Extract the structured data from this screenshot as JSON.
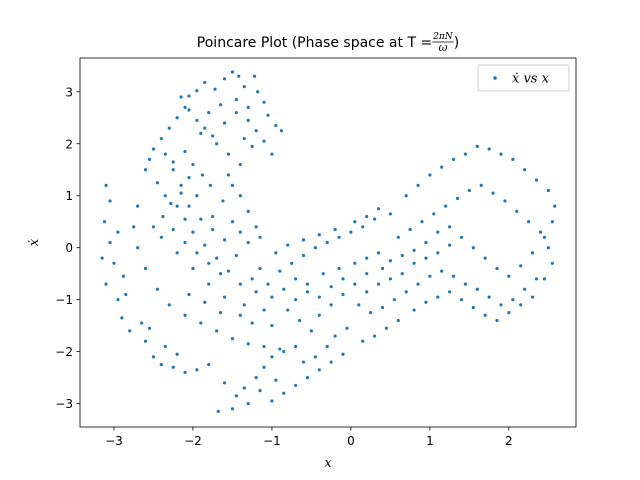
{
  "chart_data": {
    "type": "scatter",
    "title": {
      "prefix": "Poincare Plot (Phase space at T = ",
      "frac_numerator": "2πN",
      "frac_denominator": "ω",
      "suffix": ")"
    },
    "xlabel": "x",
    "ylabel": "ẋ",
    "xlim": [
      -3.43,
      2.85
    ],
    "ylim": [
      -3.45,
      3.65
    ],
    "xticks": [
      -3,
      -2,
      -1,
      0,
      1,
      2
    ],
    "yticks": [
      -3,
      -2,
      -1,
      0,
      1,
      2,
      3
    ],
    "xtick_labels": [
      "−3",
      "−2",
      "−1",
      "0",
      "1",
      "2"
    ],
    "ytick_labels": [
      "−3",
      "−2",
      "−1",
      "0",
      "1",
      "2",
      "3"
    ],
    "legend": {
      "label": "ẋ vs x",
      "location": "upper right"
    },
    "colors": {
      "series": "#1f77b4"
    },
    "series": [
      {
        "name": "ẋ vs x",
        "points": [
          [
            -1.5,
            3.38
          ],
          [
            -1.42,
            3.3
          ],
          [
            -1.35,
            3.1
          ],
          [
            -1.6,
            3.25
          ],
          [
            -1.72,
            3.05
          ],
          [
            -1.85,
            3.18
          ],
          [
            -1.95,
            3.02
          ],
          [
            -2.05,
            2.92
          ],
          [
            -1.22,
            3.3
          ],
          [
            -1.18,
            3.0
          ],
          [
            -1.1,
            2.8
          ],
          [
            -1.05,
            2.55
          ],
          [
            -0.95,
            2.35
          ],
          [
            -0.88,
            2.25
          ],
          [
            -1.3,
            2.7
          ],
          [
            -1.45,
            2.85
          ],
          [
            -1.65,
            2.75
          ],
          [
            -1.8,
            2.6
          ],
          [
            -2.1,
            2.7
          ],
          [
            -2.2,
            2.5
          ],
          [
            -2.3,
            2.3
          ],
          [
            -2.4,
            2.1
          ],
          [
            -2.5,
            1.9
          ],
          [
            -2.55,
            1.7
          ],
          [
            -2.6,
            1.5
          ],
          [
            -2.45,
            1.25
          ],
          [
            -2.35,
            1.0
          ],
          [
            -2.2,
            0.8
          ],
          [
            -2.1,
            0.55
          ],
          [
            -2.0,
            0.3
          ],
          [
            -1.85,
            0.05
          ],
          [
            -1.7,
            -0.2
          ],
          [
            -1.55,
            -0.45
          ],
          [
            -1.4,
            -0.7
          ],
          [
            -1.2,
            -0.85
          ],
          [
            -1.55,
            1.4
          ],
          [
            -1.5,
            1.2
          ],
          [
            -1.4,
            1.0
          ],
          [
            -1.3,
            0.7
          ],
          [
            -1.2,
            0.4
          ],
          [
            -1.15,
            0.2
          ],
          [
            -1.62,
            0.9
          ],
          [
            -1.75,
            0.6
          ],
          [
            -1.9,
            2.2
          ],
          [
            -1.7,
            2.0
          ],
          [
            -1.55,
            1.8
          ],
          [
            -1.4,
            1.6
          ],
          [
            -2.25,
            1.5
          ],
          [
            -2.15,
            1.2
          ],
          [
            -1.95,
            1.0
          ],
          [
            -2.7,
            0.8
          ],
          [
            -2.75,
            0.4
          ],
          [
            -2.7,
            0.0
          ],
          [
            -2.6,
            -0.4
          ],
          [
            -2.45,
            -0.8
          ],
          [
            -2.3,
            -1.1
          ],
          [
            -2.1,
            -1.3
          ],
          [
            -1.9,
            -1.45
          ],
          [
            -1.7,
            -1.6
          ],
          [
            -1.5,
            -1.75
          ],
          [
            -1.3,
            -1.85
          ],
          [
            -1.1,
            -1.9
          ],
          [
            -0.9,
            -1.95
          ],
          [
            -0.7,
            -1.9
          ],
          [
            -2.4,
            0.2
          ],
          [
            -2.2,
            -0.1
          ],
          [
            -2.0,
            -0.4
          ],
          [
            -1.8,
            -0.7
          ],
          [
            -1.6,
            -0.95
          ],
          [
            -1.35,
            -1.1
          ],
          [
            -1.1,
            -1.2
          ],
          [
            -2.05,
            -0.9
          ],
          [
            -1.85,
            -1.05
          ],
          [
            -1.65,
            -1.25
          ],
          [
            -3.1,
            1.2
          ],
          [
            -3.05,
            0.9
          ],
          [
            -3.12,
            0.5
          ],
          [
            -3.05,
            0.1
          ],
          [
            -3.0,
            -0.3
          ],
          [
            -3.1,
            -0.7
          ],
          [
            -2.95,
            -1.0
          ],
          [
            -2.9,
            -1.35
          ],
          [
            -2.8,
            -1.6
          ],
          [
            -2.95,
            0.3
          ],
          [
            -2.85,
            -0.9
          ],
          [
            -3.15,
            -0.2
          ],
          [
            -2.88,
            -0.55
          ],
          [
            -2.65,
            -1.45
          ],
          [
            -2.6,
            -1.8
          ],
          [
            -2.5,
            -2.1
          ],
          [
            -2.4,
            -2.25
          ],
          [
            -2.25,
            -2.3
          ],
          [
            -2.1,
            -2.4
          ],
          [
            -1.95,
            -2.35
          ],
          [
            -1.8,
            -2.25
          ],
          [
            -2.55,
            -1.55
          ],
          [
            -2.35,
            -1.9
          ],
          [
            -2.2,
            -2.05
          ],
          [
            -1.6,
            -2.6
          ],
          [
            -1.45,
            -2.85
          ],
          [
            -1.3,
            -3.0
          ],
          [
            -1.5,
            -3.1
          ],
          [
            -1.68,
            -3.15
          ],
          [
            -1.35,
            -2.7
          ],
          [
            -1.2,
            -2.5
          ],
          [
            -1.1,
            -2.3
          ],
          [
            -1.0,
            -2.1
          ],
          [
            -0.85,
            -2.0
          ],
          [
            -0.6,
            -2.2
          ],
          [
            -0.45,
            -2.1
          ],
          [
            -0.3,
            -1.9
          ],
          [
            -0.2,
            -1.7
          ],
          [
            -0.05,
            -1.55
          ],
          [
            -0.5,
            -1.6
          ],
          [
            -0.65,
            -1.4
          ],
          [
            -0.8,
            -1.2
          ],
          [
            -1.0,
            -1.5
          ],
          [
            -1.25,
            -1.45
          ],
          [
            -1.4,
            -1.3
          ],
          [
            -0.4,
            -1.3
          ],
          [
            -0.25,
            -1.1
          ],
          [
            -0.1,
            -0.9
          ],
          [
            -1.05,
            -0.7
          ],
          [
            -0.9,
            -0.45
          ],
          [
            -0.75,
            -0.3
          ],
          [
            -0.6,
            -0.15
          ],
          [
            -0.45,
            0.0
          ],
          [
            -0.3,
            0.1
          ],
          [
            -0.15,
            0.2
          ],
          [
            0.0,
            0.3
          ],
          [
            0.15,
            0.4
          ],
          [
            0.3,
            0.55
          ],
          [
            -0.95,
            -0.1
          ],
          [
            -0.8,
            0.05
          ],
          [
            -0.6,
            0.15
          ],
          [
            -0.4,
            0.25
          ],
          [
            -0.2,
            0.35
          ],
          [
            0.05,
            0.5
          ],
          [
            0.2,
            0.6
          ],
          [
            0.35,
            0.75
          ],
          [
            0.5,
            0.65
          ],
          [
            -0.7,
            -0.6
          ],
          [
            -0.55,
            -0.7
          ],
          [
            -0.35,
            -0.5
          ],
          [
            -0.15,
            -0.4
          ],
          [
            0.05,
            -0.3
          ],
          [
            0.1,
            -1.1
          ],
          [
            0.25,
            -1.25
          ],
          [
            0.4,
            -1.15
          ],
          [
            0.55,
            -1.0
          ],
          [
            0.7,
            -0.85
          ],
          [
            0.85,
            -0.7
          ],
          [
            1.0,
            -0.55
          ],
          [
            1.15,
            -0.45
          ],
          [
            1.3,
            -0.55
          ],
          [
            1.45,
            -0.7
          ],
          [
            1.6,
            -0.8
          ],
          [
            1.75,
            -0.95
          ],
          [
            1.9,
            -1.1
          ],
          [
            2.05,
            -1.0
          ],
          [
            2.2,
            -0.8
          ],
          [
            2.35,
            -0.6
          ],
          [
            0.2,
            -0.2
          ],
          [
            0.35,
            -0.1
          ],
          [
            0.5,
            -0.25
          ],
          [
            0.65,
            -0.15
          ],
          [
            0.8,
            -0.3
          ],
          [
            0.95,
            -0.2
          ],
          [
            1.1,
            -0.1
          ],
          [
            1.25,
            0.05
          ],
          [
            0.6,
            0.2
          ],
          [
            0.75,
            0.35
          ],
          [
            0.9,
            0.5
          ],
          [
            1.05,
            0.65
          ],
          [
            1.2,
            0.8
          ],
          [
            1.35,
            0.95
          ],
          [
            1.5,
            1.1
          ],
          [
            1.65,
            1.2
          ],
          [
            1.8,
            1.05
          ],
          [
            1.95,
            0.9
          ],
          [
            2.1,
            0.7
          ],
          [
            2.25,
            0.5
          ],
          [
            2.4,
            0.3
          ],
          [
            2.5,
            0.0
          ],
          [
            2.55,
            -0.3
          ],
          [
            2.45,
            -0.6
          ],
          [
            0.7,
            1.0
          ],
          [
            0.85,
            1.2
          ],
          [
            1.0,
            1.4
          ],
          [
            1.15,
            1.55
          ],
          [
            1.3,
            1.7
          ],
          [
            1.45,
            1.8
          ],
          [
            1.6,
            1.95
          ],
          [
            1.75,
            1.9
          ],
          [
            1.9,
            1.8
          ],
          [
            2.05,
            1.7
          ],
          [
            2.2,
            1.5
          ],
          [
            2.35,
            1.3
          ],
          [
            2.5,
            1.1
          ],
          [
            2.58,
            0.8
          ],
          [
            2.55,
            0.5
          ],
          [
            2.45,
            0.2
          ],
          [
            2.3,
            -0.1
          ],
          [
            2.15,
            -0.35
          ],
          [
            2.0,
            -0.55
          ],
          [
            1.85,
            -0.4
          ],
          [
            1.7,
            -0.2
          ],
          [
            1.55,
            0.0
          ],
          [
            1.4,
            0.2
          ],
          [
            1.25,
            0.4
          ],
          [
            1.1,
            0.3
          ],
          [
            0.95,
            0.1
          ],
          [
            0.8,
            -0.05
          ],
          [
            0.65,
            -0.5
          ],
          [
            0.5,
            -0.6
          ],
          [
            0.35,
            -0.7
          ],
          [
            0.2,
            -0.85
          ],
          [
            0.05,
            -0.7
          ],
          [
            1.55,
            -1.15
          ],
          [
            1.7,
            -1.3
          ],
          [
            1.85,
            -1.4
          ],
          [
            2.0,
            -1.25
          ],
          [
            2.15,
            -1.1
          ],
          [
            2.3,
            -0.95
          ],
          [
            1.4,
            -1.0
          ],
          [
            1.25,
            -0.85
          ],
          [
            1.1,
            -0.95
          ],
          [
            0.95,
            -1.05
          ],
          [
            0.8,
            -1.2
          ],
          [
            0.6,
            -1.4
          ],
          [
            0.45,
            -1.55
          ],
          [
            0.3,
            -1.7
          ],
          [
            0.15,
            -1.8
          ],
          [
            -0.1,
            -2.05
          ],
          [
            -0.25,
            -2.2
          ],
          [
            -0.4,
            -2.35
          ],
          [
            -0.55,
            -2.5
          ],
          [
            -0.7,
            -2.65
          ],
          [
            -0.85,
            -2.8
          ],
          [
            -1.0,
            -2.95
          ],
          [
            -1.15,
            -2.75
          ],
          [
            -0.95,
            -2.55
          ],
          [
            -2.15,
            2.9
          ],
          [
            -2.05,
            2.65
          ],
          [
            -1.95,
            2.45
          ],
          [
            -1.85,
            2.3
          ],
          [
            -1.75,
            2.15
          ],
          [
            -1.6,
            2.4
          ],
          [
            -1.45,
            2.6
          ],
          [
            -1.3,
            2.45
          ],
          [
            -1.2,
            2.25
          ],
          [
            -1.1,
            2.05
          ],
          [
            -1.0,
            1.8
          ],
          [
            -1.25,
            1.95
          ],
          [
            -1.35,
            2.1
          ],
          [
            -2.35,
            1.8
          ],
          [
            -2.25,
            1.65
          ],
          [
            -2.1,
            1.85
          ],
          [
            -2.0,
            1.6
          ],
          [
            -1.88,
            1.4
          ],
          [
            -1.78,
            1.2
          ],
          [
            -2.05,
            1.35
          ],
          [
            -2.15,
            1.05
          ],
          [
            -2.28,
            0.85
          ],
          [
            -2.38,
            0.6
          ],
          [
            -2.5,
            0.4
          ],
          [
            -1.5,
            0.5
          ],
          [
            -1.4,
            0.3
          ],
          [
            -1.3,
            0.1
          ],
          [
            -1.45,
            -0.15
          ],
          [
            -1.6,
            0.15
          ],
          [
            -1.75,
            0.35
          ],
          [
            -1.9,
            0.55
          ],
          [
            -2.05,
            0.8
          ],
          [
            -1.65,
            -0.5
          ],
          [
            -1.8,
            -0.3
          ],
          [
            -1.95,
            -0.1
          ],
          [
            -2.1,
            0.1
          ],
          [
            -2.25,
            0.35
          ],
          [
            -1.15,
            -0.4
          ],
          [
            -1.25,
            -0.6
          ],
          [
            -1.0,
            -0.95
          ],
          [
            -0.85,
            -0.8
          ],
          [
            -0.7,
            -1.0
          ],
          [
            -0.55,
            -0.85
          ],
          [
            -0.4,
            -0.95
          ],
          [
            -0.25,
            -0.75
          ],
          [
            -0.1,
            -0.6
          ],
          [
            0.2,
            -0.5
          ],
          [
            0.4,
            -0.4
          ]
        ]
      }
    ]
  }
}
